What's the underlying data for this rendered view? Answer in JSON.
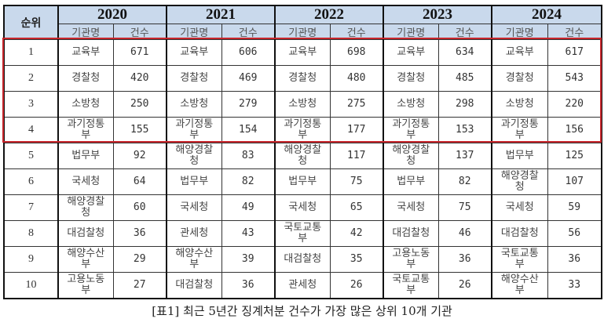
{
  "table": {
    "rank_header": "순위",
    "years": [
      "2020",
      "2021",
      "2022",
      "2023",
      "2024"
    ],
    "sub_headers": {
      "name": "기관명",
      "count": "건수"
    },
    "highlight": {
      "rows": [
        1,
        2,
        3,
        4
      ],
      "color": "#c8262c"
    },
    "header_bg": "#c9d9ec",
    "rows": [
      {
        "rank": "1",
        "cells": [
          {
            "name": "교육부",
            "count": "671"
          },
          {
            "name": "교육부",
            "count": "606"
          },
          {
            "name": "교육부",
            "count": "698"
          },
          {
            "name": "교육부",
            "count": "634"
          },
          {
            "name": "교육부",
            "count": "617"
          }
        ]
      },
      {
        "rank": "2",
        "cells": [
          {
            "name": "경찰청",
            "count": "420"
          },
          {
            "name": "경찰청",
            "count": "469"
          },
          {
            "name": "경찰청",
            "count": "480"
          },
          {
            "name": "경찰청",
            "count": "485"
          },
          {
            "name": "경찰청",
            "count": "543"
          }
        ]
      },
      {
        "rank": "3",
        "cells": [
          {
            "name": "소방청",
            "count": "250"
          },
          {
            "name": "소방청",
            "count": "279"
          },
          {
            "name": "소방청",
            "count": "275"
          },
          {
            "name": "소방청",
            "count": "298"
          },
          {
            "name": "소방청",
            "count": "220"
          }
        ]
      },
      {
        "rank": "4",
        "cells": [
          {
            "name": "과기정통부",
            "count": "155"
          },
          {
            "name": "과기정통부",
            "count": "154"
          },
          {
            "name": "과기정통부",
            "count": "177"
          },
          {
            "name": "과기정통부",
            "count": "153"
          },
          {
            "name": "과기정통부",
            "count": "156"
          }
        ]
      },
      {
        "rank": "5",
        "cells": [
          {
            "name": "법무부",
            "count": "92"
          },
          {
            "name": "해양경찰청",
            "count": "83"
          },
          {
            "name": "해양경찰청",
            "count": "117"
          },
          {
            "name": "해양경찰청",
            "count": "137"
          },
          {
            "name": "법무부",
            "count": "125"
          }
        ]
      },
      {
        "rank": "6",
        "cells": [
          {
            "name": "국세청",
            "count": "64"
          },
          {
            "name": "법무부",
            "count": "82"
          },
          {
            "name": "법무부",
            "count": "75"
          },
          {
            "name": "법무부",
            "count": "82"
          },
          {
            "name": "해양경찰청",
            "count": "107"
          }
        ]
      },
      {
        "rank": "7",
        "cells": [
          {
            "name": "해양경찰청",
            "count": "60"
          },
          {
            "name": "국세청",
            "count": "49"
          },
          {
            "name": "국세청",
            "count": "65"
          },
          {
            "name": "국세청",
            "count": "75"
          },
          {
            "name": "국세청",
            "count": "59"
          }
        ]
      },
      {
        "rank": "8",
        "cells": [
          {
            "name": "대검찰청",
            "count": "36"
          },
          {
            "name": "관세청",
            "count": "43"
          },
          {
            "name": "국토교통부",
            "count": "42"
          },
          {
            "name": "대검찰청",
            "count": "46"
          },
          {
            "name": "대검찰청",
            "count": "56"
          }
        ]
      },
      {
        "rank": "9",
        "cells": [
          {
            "name": "해양수산부",
            "count": "29"
          },
          {
            "name": "해양수산부",
            "count": "39"
          },
          {
            "name": "대검찰청",
            "count": "35"
          },
          {
            "name": "고용노동부",
            "count": "36"
          },
          {
            "name": "국토교통부",
            "count": "36"
          }
        ]
      },
      {
        "rank": "10",
        "cells": [
          {
            "name": "고용노동부",
            "count": "27"
          },
          {
            "name": "대검찰청",
            "count": "36"
          },
          {
            "name": "관세청",
            "count": "26"
          },
          {
            "name": "국토교통부",
            "count": "26"
          },
          {
            "name": "해양수산부",
            "count": "33"
          }
        ]
      }
    ]
  },
  "caption": "[표1] 최근 5년간 징계처분 건수가 가장 많은 상위 10개 기관"
}
